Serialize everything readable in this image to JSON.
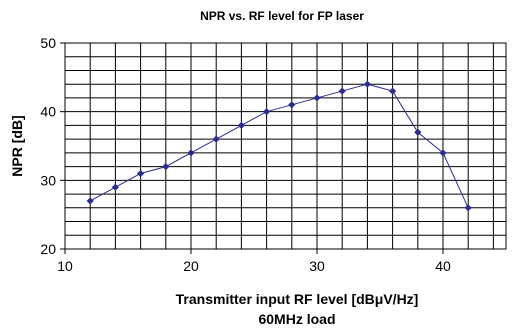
{
  "chart_data": {
    "type": "line",
    "title": "NPR vs. RF level for FP laser",
    "xlabel": "Transmitter input RF level [dBμV/Hz]",
    "xlabel2": "60MHz load",
    "ylabel": "NPR [dB]",
    "xlim": [
      10,
      45
    ],
    "ylim": [
      20,
      50
    ],
    "x_ticks": [
      10,
      20,
      30,
      40
    ],
    "y_ticks": [
      20,
      30,
      40,
      50
    ],
    "x_grid_step": 2,
    "y_grid_step": 2,
    "grid": true,
    "legend": "none",
    "series": [
      {
        "x": [
          12,
          14,
          16,
          18,
          20,
          22,
          24,
          26,
          28,
          30,
          32,
          34,
          36,
          38,
          40,
          42
        ],
        "y": [
          27,
          29,
          31,
          32,
          34,
          36,
          38,
          40,
          41,
          42,
          43,
          44,
          43,
          37,
          34,
          26
        ],
        "color": "#2b2c8f"
      }
    ]
  }
}
